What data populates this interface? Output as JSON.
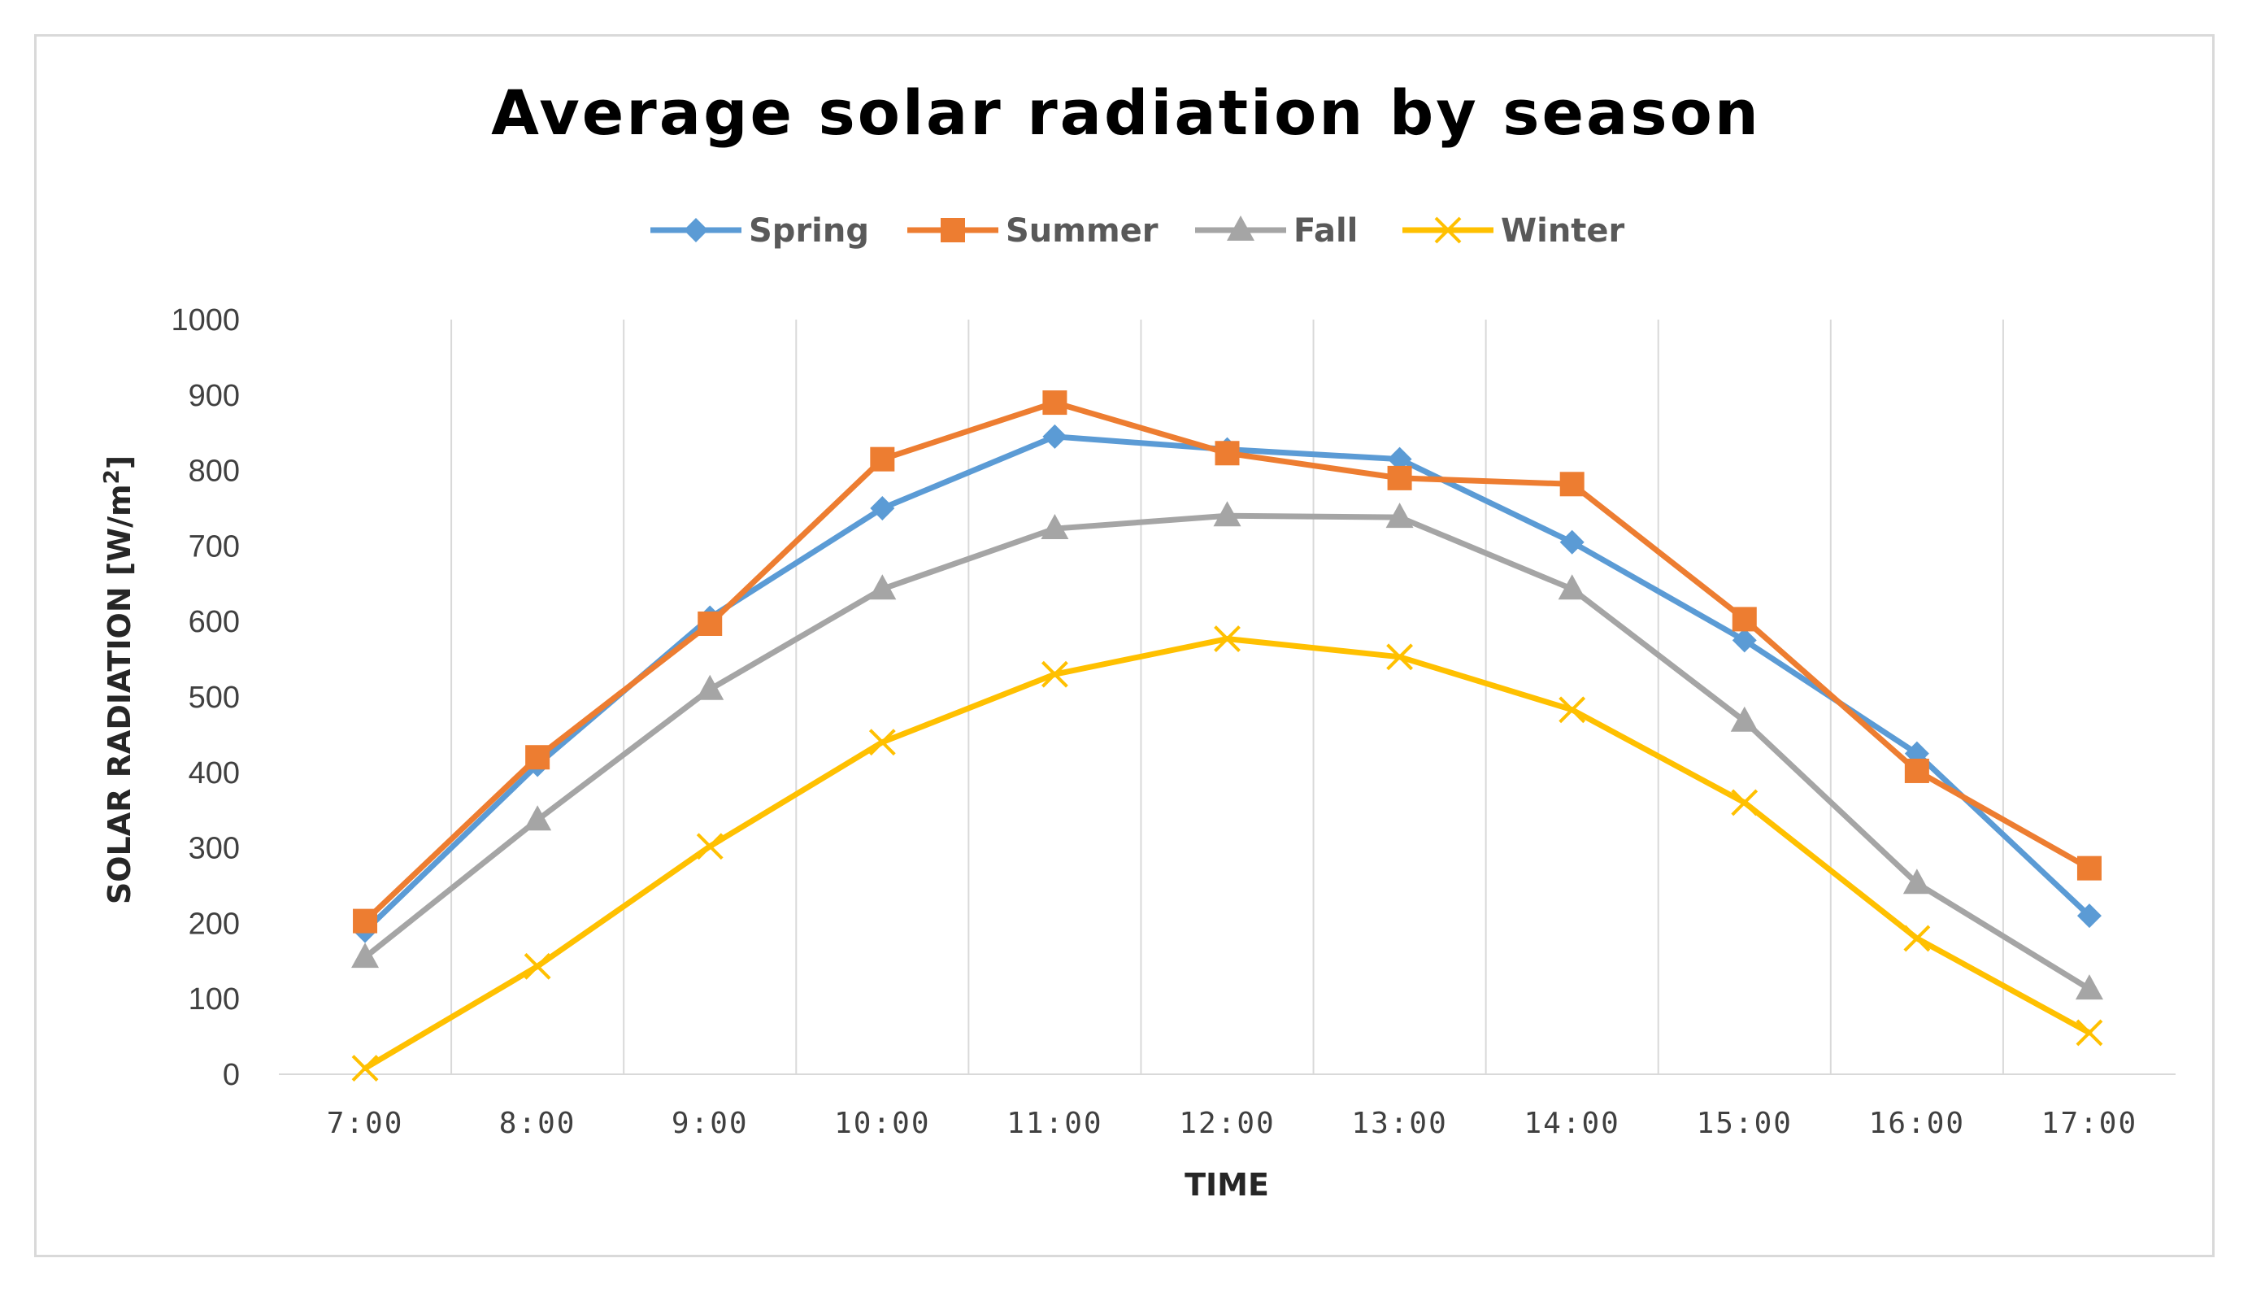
{
  "chart_data": {
    "type": "line",
    "title": "Average solar radiation by season",
    "xlabel": "TIME",
    "ylabel_main": "SOLAR RADIATION [W/m",
    "ylabel_sup": "2",
    "ylabel_end": "]",
    "categories": [
      "7:00",
      "8:00",
      "9:00",
      "10:00",
      "11:00",
      "12:00",
      "13:00",
      "14:00",
      "15:00",
      "16:00",
      "17:00"
    ],
    "ylim": [
      0,
      1000
    ],
    "yticks": [
      0,
      100,
      200,
      300,
      400,
      500,
      600,
      700,
      800,
      900,
      1000
    ],
    "grid": "vertical",
    "legend_position": "top",
    "series": [
      {
        "name": "Spring",
        "color": "#5b9bd5",
        "marker": "diamond",
        "values": [
          190,
          410,
          605,
          750,
          845,
          828,
          815,
          705,
          575,
          425,
          210
        ]
      },
      {
        "name": "Summer",
        "color": "#ed7d31",
        "marker": "square",
        "values": [
          203,
          420,
          597,
          815,
          890,
          823,
          790,
          782,
          603,
          402,
          273
        ]
      },
      {
        "name": "Fall",
        "color": "#a5a5a5",
        "marker": "triangle",
        "values": [
          155,
          337,
          510,
          643,
          723,
          740,
          738,
          643,
          468,
          253,
          113
        ]
      },
      {
        "name": "Winter",
        "color": "#ffc000",
        "marker": "x",
        "values": [
          8,
          143,
          302,
          440,
          530,
          577,
          553,
          483,
          360,
          180,
          55
        ]
      }
    ]
  }
}
